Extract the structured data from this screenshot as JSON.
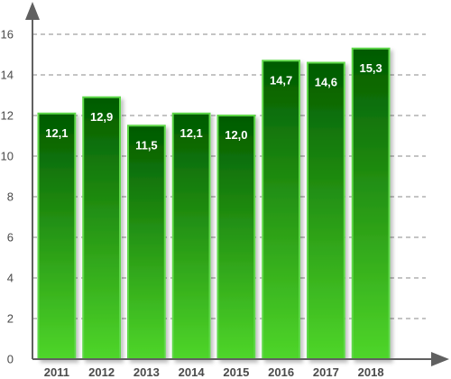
{
  "chart_data": {
    "type": "bar",
    "categories": [
      "2011",
      "2012",
      "2013",
      "2014",
      "2015",
      "2016",
      "2017",
      "2018"
    ],
    "values": [
      12.1,
      12.9,
      11.5,
      12.1,
      12.0,
      14.7,
      14.6,
      15.3
    ],
    "value_labels": [
      "12,1",
      "12,9",
      "11,5",
      "12,1",
      "12,0",
      "14,7",
      "14,6",
      "15,3"
    ],
    "yticks": [
      0,
      2,
      4,
      6,
      8,
      10,
      12,
      14,
      16
    ],
    "ylim": [
      0,
      16
    ],
    "grid": true,
    "colors": {
      "bar_top": "#005a00",
      "bar_bottom": "#4fd62a",
      "bar_border": "#5fd84a",
      "axis": "#606060",
      "grid": "#8a8a8a"
    }
  }
}
